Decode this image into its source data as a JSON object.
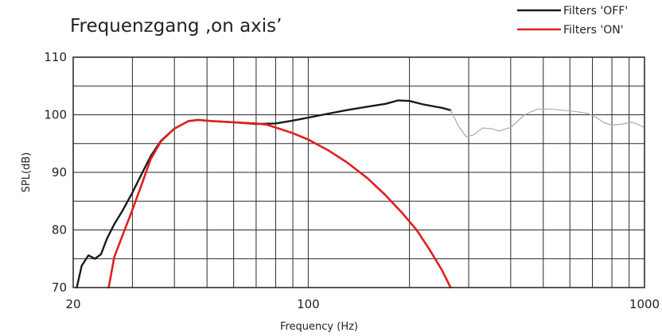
{
  "chart_data": {
    "type": "line",
    "title": "Frequenzgang ‚on axis’",
    "xlabel": "Frequency (Hz)",
    "ylabel": "SPL(dB)",
    "x_scale": "log",
    "xlim": [
      20,
      1000
    ],
    "ylim": [
      70,
      110
    ],
    "x_tick_labels": [
      {
        "value": 20,
        "label": "20"
      },
      {
        "value": 100,
        "label": "100"
      },
      {
        "value": 1000,
        "label": "1000"
      }
    ],
    "x_grid": [
      20,
      30,
      40,
      50,
      60,
      70,
      80,
      90,
      100,
      200,
      300,
      400,
      500,
      600,
      700,
      800,
      900,
      1000
    ],
    "y_ticks": [
      70,
      80,
      90,
      100,
      110
    ],
    "y_grid": [
      70,
      75,
      80,
      85,
      90,
      95,
      100,
      105,
      110
    ],
    "grid": true,
    "legend_position": "top-right",
    "series": [
      {
        "name": "Filters 'OFF'",
        "color": "#1a1a1a",
        "points": [
          [
            20.5,
            70
          ],
          [
            21.2,
            73.8
          ],
          [
            22.2,
            75.6
          ],
          [
            23.2,
            75
          ],
          [
            24.2,
            75.8
          ],
          [
            25.2,
            78.5
          ],
          [
            26.5,
            81
          ],
          [
            28,
            83.3
          ],
          [
            30,
            86.5
          ],
          [
            32,
            89.8
          ],
          [
            34,
            92.8
          ],
          [
            36.5,
            95.5
          ],
          [
            40,
            97.6
          ],
          [
            44,
            98.9
          ],
          [
            47,
            99.1
          ],
          [
            52,
            98.9
          ],
          [
            60,
            98.7
          ],
          [
            70,
            98.4
          ],
          [
            80,
            98.5
          ],
          [
            90,
            99
          ],
          [
            100,
            99.5
          ],
          [
            115,
            100.2
          ],
          [
            130,
            100.8
          ],
          [
            150,
            101.4
          ],
          [
            170,
            101.9
          ],
          [
            185,
            102.5
          ],
          [
            200,
            102.4
          ],
          [
            220,
            101.8
          ],
          [
            250,
            101.2
          ],
          [
            265,
            100.8
          ]
        ]
      },
      {
        "name": "Filters 'ON'",
        "color": "#e02020",
        "points": [
          [
            25.5,
            70
          ],
          [
            26.5,
            75.3
          ],
          [
            28,
            79
          ],
          [
            30,
            83.5
          ],
          [
            32,
            88
          ],
          [
            34,
            92.3
          ],
          [
            36.5,
            95.4
          ],
          [
            40,
            97.6
          ],
          [
            44,
            98.9
          ],
          [
            47,
            99.1
          ],
          [
            52,
            98.9
          ],
          [
            60,
            98.7
          ],
          [
            70,
            98.5
          ],
          [
            75,
            98.3
          ],
          [
            80,
            97.8
          ],
          [
            90,
            96.8
          ],
          [
            100,
            95.7
          ],
          [
            115,
            93.8
          ],
          [
            130,
            91.8
          ],
          [
            150,
            89
          ],
          [
            170,
            86
          ],
          [
            190,
            83
          ],
          [
            210,
            80
          ],
          [
            230,
            76.5
          ],
          [
            250,
            73
          ],
          [
            265,
            70
          ]
        ]
      },
      {
        "name": "",
        "color": "#aaaaaa",
        "points": [
          [
            265,
            100.8
          ],
          [
            280,
            98
          ],
          [
            295,
            96.2
          ],
          [
            310,
            96.5
          ],
          [
            330,
            97.7
          ],
          [
            350,
            97.6
          ],
          [
            370,
            97.2
          ],
          [
            400,
            97.8
          ],
          [
            440,
            100
          ],
          [
            480,
            101
          ],
          [
            520,
            101
          ],
          [
            570,
            100.8
          ],
          [
            620,
            100.6
          ],
          [
            680,
            100.2
          ],
          [
            720,
            99.5
          ],
          [
            760,
            98.6
          ],
          [
            800,
            98.2
          ],
          [
            860,
            98.4
          ],
          [
            920,
            98.7
          ],
          [
            960,
            98.3
          ],
          [
            1000,
            97.8
          ]
        ]
      }
    ]
  }
}
